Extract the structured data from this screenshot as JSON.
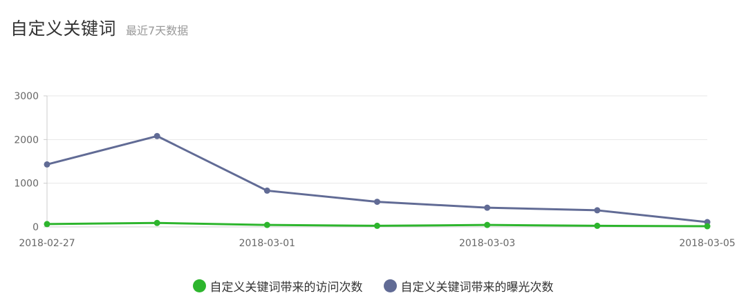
{
  "header": {
    "title": "自定义关键词",
    "subtitle": "最近7天数据"
  },
  "chart_data": {
    "type": "line",
    "categories": [
      "2018-02-27",
      "2018-02-28",
      "2018-03-01",
      "2018-03-02",
      "2018-03-03",
      "2018-03-04",
      "2018-03-05"
    ],
    "x_tick_labels": [
      "2018-02-27",
      "2018-03-01",
      "2018-03-03",
      "2018-03-05"
    ],
    "y_ticks": [
      0,
      1000,
      2000,
      3000
    ],
    "ylim": [
      0,
      3000
    ],
    "grid": true,
    "legend_position": "bottom",
    "series": [
      {
        "name": "自定义关键词带来的访问次数",
        "color": "#2db52d",
        "values": [
          65,
          90,
          45,
          25,
          45,
          25,
          15
        ]
      },
      {
        "name": "自定义关键词带来的曝光次数",
        "color": "#616b95",
        "values": [
          1430,
          2080,
          830,
          575,
          440,
          380,
          110
        ]
      }
    ]
  }
}
